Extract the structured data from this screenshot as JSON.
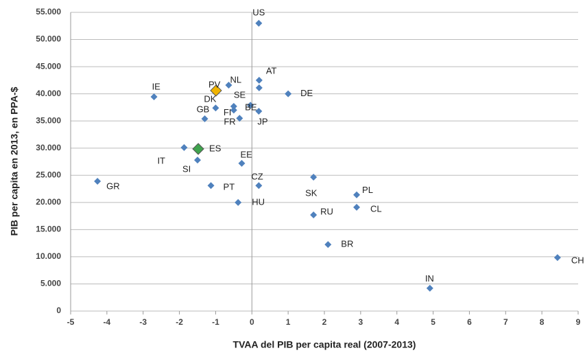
{
  "chart_data": {
    "type": "scatter",
    "xlabel": "TVAA del PIB per capita real  (2007-2013)",
    "ylabel": "PIB per capita en 2013, en PPA-$",
    "labels": [
      "US",
      "AT",
      null,
      "DE",
      "NL",
      "PV",
      "IE",
      "DK",
      "SE",
      "FI",
      "BE",
      "JP",
      "GB",
      "FR",
      "IT",
      "ES",
      "SI",
      "EE",
      "CZ",
      "PT",
      "HU",
      "GR",
      "SK",
      "PL",
      "CL",
      "RU",
      "BR",
      "CH",
      "IN"
    ],
    "x": [
      0.19,
      0.2,
      0.2,
      1.0,
      -0.64,
      -0.99,
      -2.7,
      -1.0,
      -0.5,
      -0.5,
      -0.04,
      0.19,
      -1.3,
      -0.34,
      -1.87,
      -1.48,
      -1.5,
      -0.28,
      0.19,
      -1.13,
      -0.38,
      -4.26,
      1.7,
      2.89,
      2.89,
      1.7,
      2.1,
      8.43,
      4.91
    ],
    "values": [
      53000,
      42500,
      41100,
      40000,
      41600,
      40600,
      39450,
      37400,
      37700,
      37000,
      37900,
      36800,
      35400,
      35500,
      30100,
      29850,
      27800,
      27200,
      23100,
      23100,
      20000,
      23900,
      24650,
      21400,
      19100,
      17700,
      12250,
      9850,
      4200
    ],
    "color": "#4f81bd",
    "point_colors": [
      "#4f81bd",
      "#4f81bd",
      "#4f81bd",
      "#4f81bd",
      "#4f81bd",
      "#f0b400",
      "#4f81bd",
      "#4f81bd",
      "#4f81bd",
      "#4f81bd",
      "#4f81bd",
      "#4f81bd",
      "#4f81bd",
      "#4f81bd",
      "#4f81bd",
      "#3fa34d",
      "#4f81bd",
      "#4f81bd",
      "#4f81bd",
      "#4f81bd",
      "#4f81bd",
      "#4f81bd",
      "#4f81bd",
      "#4f81bd",
      "#4f81bd",
      "#4f81bd",
      "#4f81bd",
      "#4f81bd",
      "#4f81bd"
    ],
    "xlim": [
      -5,
      9
    ],
    "xticks": [
      -5,
      -4,
      -3,
      -2,
      -1,
      0,
      1,
      2,
      3,
      4,
      5,
      6,
      7,
      8,
      9
    ],
    "ylim": [
      0,
      55000
    ],
    "yticks": [
      0,
      {
        "value": 5000,
        "label": "5.000"
      },
      {
        "value": 10000,
        "label": "10.000"
      },
      {
        "value": 15000,
        "label": "15.000"
      },
      {
        "value": 20000,
        "label": "20.000"
      },
      {
        "value": 25000,
        "label": "25.000"
      },
      {
        "value": 30000,
        "label": "30.000"
      },
      {
        "value": 35000,
        "label": "35.000"
      },
      {
        "value": 40000,
        "label": "40.000"
      },
      {
        "value": 45000,
        "label": "45.000"
      },
      {
        "value": 50000,
        "label": "50.000"
      },
      {
        "value": 55000,
        "label": "55.000"
      }
    ],
    "grid": true
  }
}
